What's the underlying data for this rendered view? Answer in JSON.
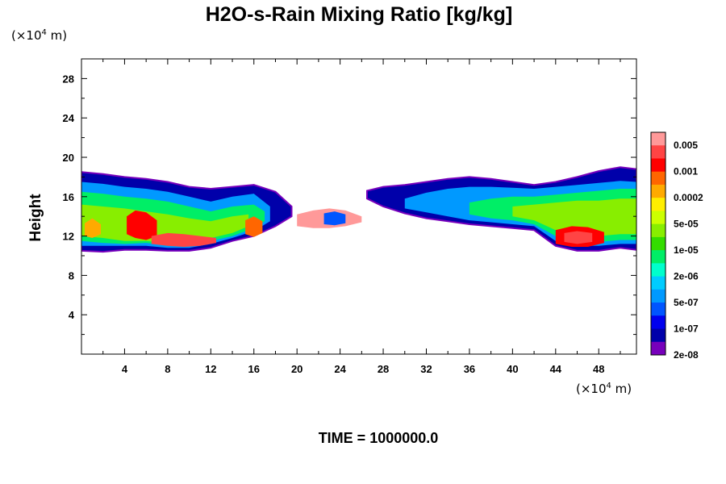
{
  "chart_data": {
    "type": "heatmap",
    "title": "H2O-s-Rain Mixing Ratio [kg/kg]",
    "ylabel": "Height",
    "xlabel": "",
    "x_unit": {
      "prefix": "(×10",
      "exp": "4",
      "suffix": " m)"
    },
    "y_unit": {
      "prefix": "(×10",
      "exp": "4",
      "suffix": " m)"
    },
    "xlim": [
      0,
      51.5
    ],
    "ylim": [
      0,
      30
    ],
    "xticks": [
      4,
      8,
      12,
      16,
      20,
      24,
      28,
      32,
      36,
      40,
      44,
      48
    ],
    "yticks": [
      4,
      8,
      12,
      16,
      20,
      24,
      28
    ],
    "colorbar": {
      "levels": [
        "0.005",
        "0.001",
        "0.0002",
        "5e-05",
        "1e-05",
        "2e-06",
        "5e-07",
        "1e-07",
        "2e-08"
      ],
      "colors": [
        "#ff9999",
        "#ff4444",
        "#ff0000",
        "#ff6600",
        "#ffaa00",
        "#ffee00",
        "#ccff00",
        "#88ee00",
        "#33dd00",
        "#00ee66",
        "#00ffcc",
        "#00ccff",
        "#0099ff",
        "#0055ff",
        "#0000ee",
        "#0000aa",
        "#7700bb"
      ]
    },
    "annotation": "TIME = 1000000.0",
    "regions": [
      {
        "level": 0,
        "x": [
          0,
          2,
          4,
          6,
          8,
          10,
          12,
          14,
          16,
          18,
          19.5
        ],
        "top": [
          18.5,
          18.3,
          18.0,
          17.8,
          17.5,
          17.0,
          16.8,
          17.0,
          17.2,
          16.5,
          15.0
        ],
        "bottom": [
          10.5,
          10.4,
          10.6,
          10.6,
          10.5,
          10.5,
          10.8,
          11.5,
          12.0,
          13.0,
          14.0
        ]
      },
      {
        "level": 4,
        "x": [
          0,
          2,
          4,
          6,
          8,
          10,
          12,
          14,
          16,
          17.5
        ],
        "top": [
          17.5,
          17.3,
          17.0,
          16.8,
          16.5,
          16.0,
          15.5,
          16.0,
          16.3,
          15.0
        ],
        "bottom": [
          11.0,
          11.0,
          11.0,
          11.0,
          10.8,
          10.8,
          11.2,
          11.8,
          12.5,
          13.5
        ]
      },
      {
        "level": 7,
        "x": [
          0,
          2,
          4,
          6,
          8,
          10,
          12,
          14,
          16,
          17
        ],
        "top": [
          16.5,
          16.3,
          16.0,
          15.8,
          15.5,
          15.0,
          14.5,
          15.0,
          15.2,
          14.5
        ],
        "bottom": [
          11.5,
          11.3,
          11.2,
          11.3,
          11.0,
          11.0,
          11.5,
          12.0,
          12.8,
          13.5
        ]
      },
      {
        "level": 9,
        "x": [
          0,
          2,
          4,
          6,
          8,
          10,
          12,
          14,
          15.5
        ],
        "top": [
          15.2,
          15.0,
          14.8,
          14.5,
          14.2,
          13.8,
          13.5,
          14.0,
          14.2
        ],
        "bottom": [
          12.0,
          11.8,
          11.5,
          11.5,
          11.3,
          11.2,
          11.8,
          12.3,
          13.0
        ]
      },
      {
        "level": 20,
        "x": [
          20,
          21.5,
          23,
          24.5,
          26
        ],
        "top": [
          14.2,
          14.6,
          14.8,
          14.6,
          14.0
        ],
        "bottom": [
          13.0,
          12.8,
          12.8,
          13.0,
          13.4
        ]
      },
      {
        "level": 3,
        "x": [
          22.5,
          23.5,
          24.5
        ],
        "top": [
          14.3,
          14.5,
          14.2
        ],
        "bottom": [
          13.2,
          13.1,
          13.3
        ]
      },
      {
        "level": 0,
        "x": [
          26.5,
          28,
          30,
          32,
          34,
          36,
          38,
          40,
          42,
          44,
          46,
          48,
          50,
          51.5
        ],
        "top": [
          16.6,
          17.0,
          17.2,
          17.5,
          17.8,
          18.0,
          17.8,
          17.5,
          17.2,
          17.5,
          18.0,
          18.6,
          19.0,
          18.8
        ],
        "bottom": [
          15.8,
          15.0,
          14.3,
          13.8,
          13.5,
          13.2,
          13.0,
          12.8,
          12.6,
          11.0,
          10.5,
          10.5,
          10.8,
          10.6
        ]
      },
      {
        "level": 4,
        "x": [
          30,
          32,
          34,
          36,
          38,
          40,
          42,
          44,
          46,
          48,
          50,
          51.5
        ],
        "top": [
          15.8,
          16.4,
          16.8,
          17.0,
          17.0,
          16.9,
          16.8,
          17.0,
          17.2,
          17.4,
          17.6,
          17.5
        ],
        "bottom": [
          14.8,
          14.4,
          14.0,
          13.6,
          13.4,
          13.2,
          13.0,
          11.5,
          11.0,
          11.0,
          11.2,
          11.2
        ]
      },
      {
        "level": 7,
        "x": [
          36,
          38,
          40,
          42,
          44,
          46,
          48,
          50,
          51.5
        ],
        "top": [
          15.4,
          15.8,
          16.0,
          16.0,
          16.2,
          16.4,
          16.6,
          16.8,
          16.8
        ],
        "bottom": [
          14.2,
          13.8,
          13.6,
          13.2,
          12.0,
          11.5,
          11.4,
          11.6,
          11.6
        ]
      },
      {
        "level": 9,
        "x": [
          40,
          42,
          44,
          46,
          48,
          50,
          51.5
        ],
        "top": [
          15.0,
          15.2,
          15.4,
          15.6,
          15.6,
          15.8,
          15.8
        ],
        "bottom": [
          14.0,
          13.6,
          12.6,
          12.2,
          12.0,
          12.2,
          12.2
        ]
      },
      {
        "level": 12,
        "x": [
          0.3,
          1.0,
          1.8
        ],
        "top": [
          13.3,
          13.8,
          13.2
        ],
        "bottom": [
          12.0,
          11.8,
          12.2
        ]
      },
      {
        "level": 14,
        "x": [
          4.2,
          5.0,
          6.0,
          7.0
        ],
        "top": [
          14.0,
          14.6,
          14.4,
          13.6
        ],
        "bottom": [
          12.2,
          11.8,
          11.6,
          12.0
        ]
      },
      {
        "level": 15,
        "x": [
          6.5,
          8.0,
          9.5,
          11.0,
          12.5
        ],
        "top": [
          12.0,
          12.3,
          12.2,
          12.0,
          11.8
        ],
        "bottom": [
          11.2,
          11.0,
          10.9,
          11.0,
          11.3
        ]
      },
      {
        "level": 13,
        "x": [
          15.2,
          16.0,
          16.8
        ],
        "top": [
          13.6,
          14.0,
          13.5
        ],
        "bottom": [
          12.2,
          11.9,
          12.3
        ]
      },
      {
        "level": 14,
        "x": [
          44.0,
          45.5,
          47.0,
          48.5
        ],
        "top": [
          12.6,
          13.0,
          12.9,
          12.4
        ],
        "bottom": [
          11.2,
          10.9,
          10.9,
          11.3
        ]
      },
      {
        "level": 15,
        "x": [
          44.8,
          46.0,
          47.4
        ],
        "top": [
          12.3,
          12.5,
          12.3
        ],
        "bottom": [
          11.4,
          11.2,
          11.4
        ]
      }
    ]
  }
}
